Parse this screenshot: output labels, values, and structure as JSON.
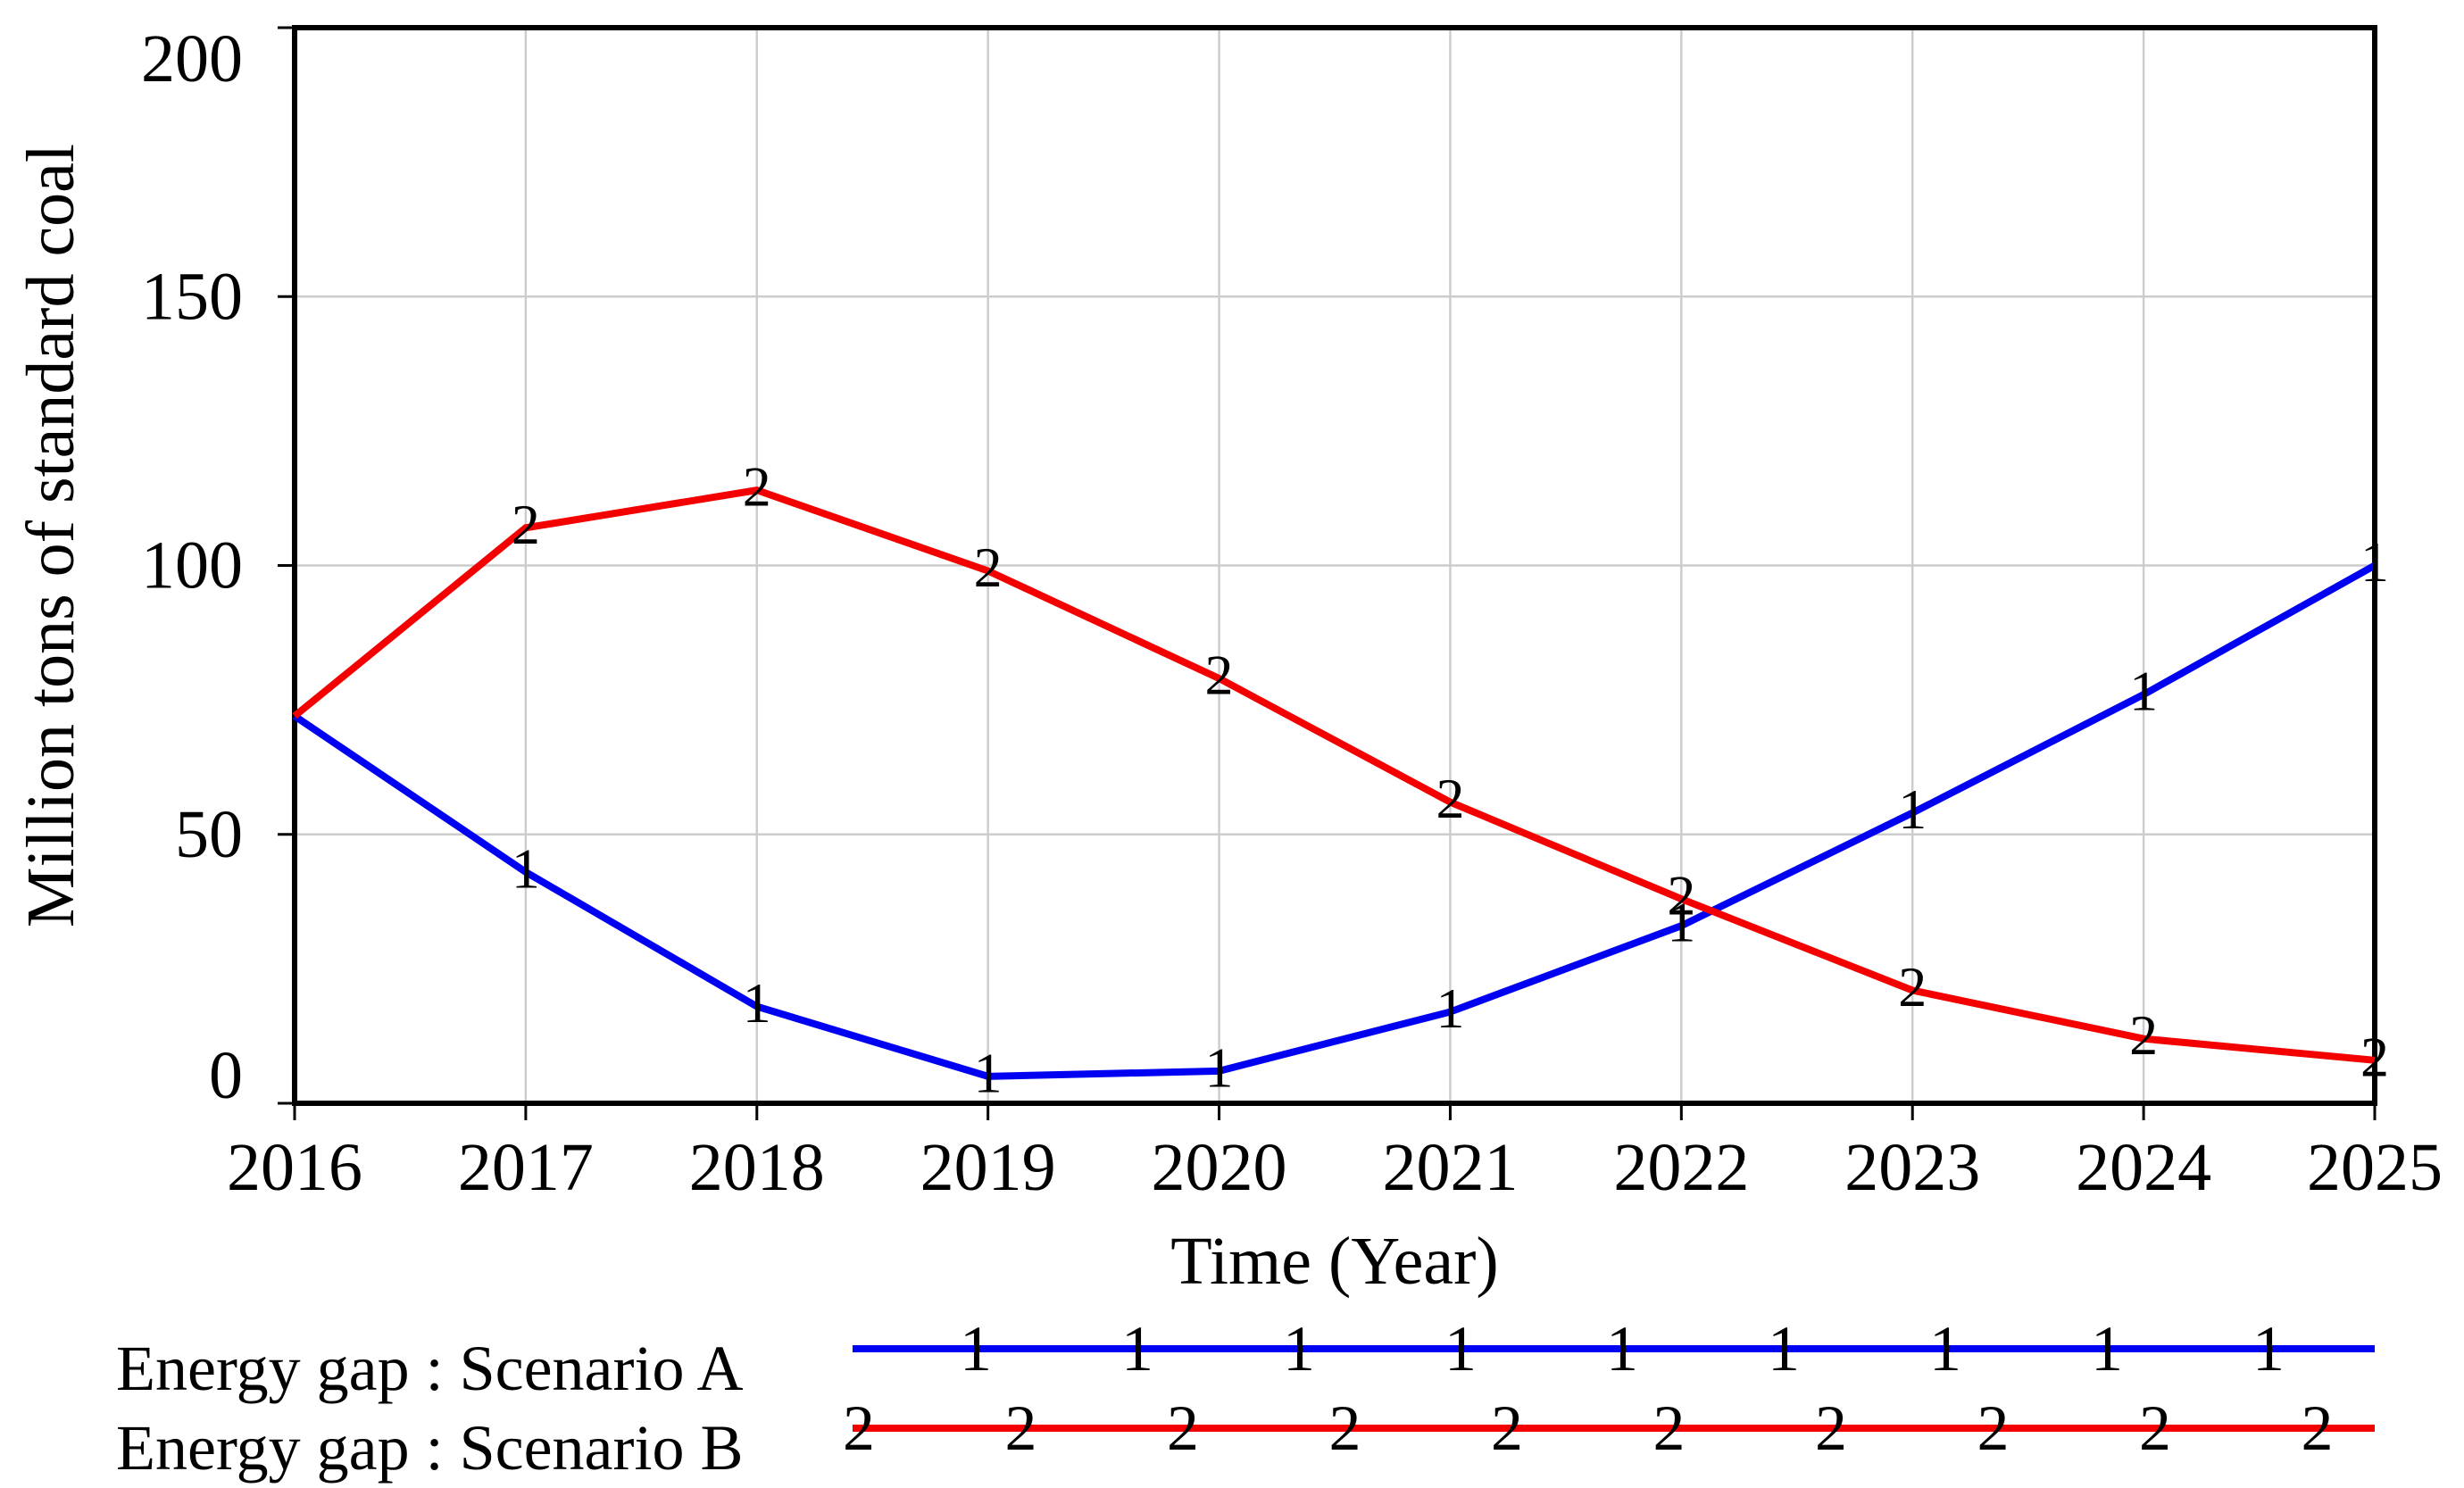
{
  "chart_data": {
    "type": "line",
    "title": "",
    "xlabel": "Time (Year)",
    "ylabel": "Million tons of standard coal",
    "x": [
      2016,
      2017,
      2018,
      2019,
      2020,
      2021,
      2022,
      2023,
      2024,
      2025
    ],
    "x_tick_labels": [
      "2016",
      "2017",
      "2018",
      "2019",
      "2020",
      "2021",
      "2022",
      "2023",
      "2024",
      "2025"
    ],
    "yticks": [
      0,
      50,
      100,
      150,
      200
    ],
    "ytick_labels": [
      "0",
      "50",
      "100",
      "150",
      "200"
    ],
    "ylim": [
      0,
      200
    ],
    "grid": true,
    "legend_position": "bottom-left",
    "series": [
      {
        "name": "Energy gap : Scenario A",
        "marker_glyph": "1",
        "color": "#0000f2",
        "values": [
          72,
          43,
          18,
          5,
          6,
          17,
          33,
          54,
          76,
          100
        ]
      },
      {
        "name": "Energy gap : Scenario B",
        "marker_glyph": "2",
        "color": "#f40000",
        "values": [
          72,
          107,
          114,
          99,
          79,
          56,
          38,
          21,
          12,
          8
        ]
      }
    ]
  },
  "colors": {
    "grid": "#cccccc",
    "axis": "#000000",
    "background": "#ffffff"
  }
}
